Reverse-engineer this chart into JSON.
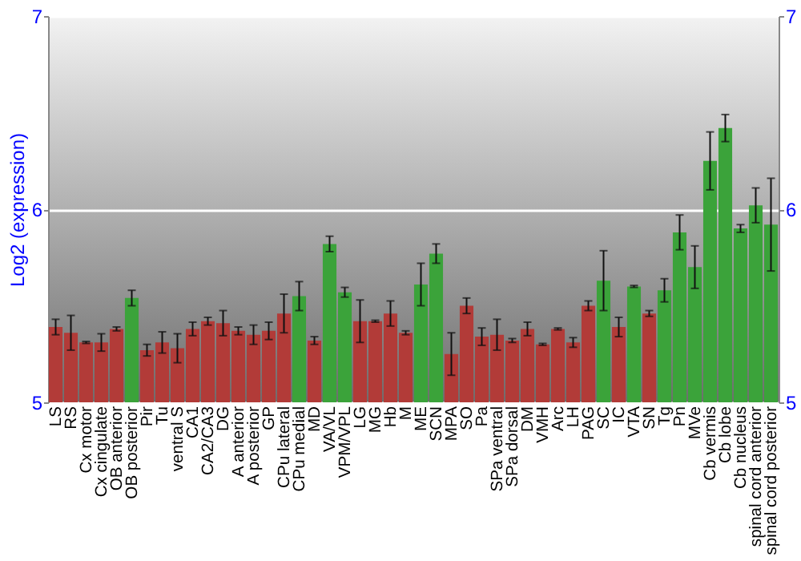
{
  "chart_data": {
    "type": "bar",
    "ylabel": "Log2 (expression)",
    "categories": [
      "LS",
      "RS",
      "Cx motor",
      "Cx cingulate",
      "OB anterior",
      "OB posterior",
      "Pir",
      "Tu",
      "ventral S",
      "CA1",
      "CA2/CA3",
      "DG",
      "A anterior",
      "A posterior",
      "GP",
      "CPu lateral",
      "CPu medial",
      "MD",
      "VA/VL",
      "VPM/VPL",
      "LG",
      "MG",
      "Hb",
      "M",
      "ME",
      "SCN",
      "MPA",
      "SO",
      "Pa",
      "SPa ventral",
      "SPa dorsal",
      "DM",
      "VMH",
      "Arc",
      "LH",
      "PAG",
      "SC",
      "IC",
      "VTA",
      "SN",
      "Tg",
      "Pn",
      "MVe",
      "Cb vermis",
      "Cb lobe",
      "Cb nucleus",
      "spinal cord anterior",
      "spinal cord posterior"
    ],
    "values": [
      5.39,
      5.36,
      5.31,
      5.31,
      5.38,
      5.54,
      5.27,
      5.31,
      5.28,
      5.38,
      5.42,
      5.41,
      5.37,
      5.35,
      5.37,
      5.46,
      5.55,
      5.32,
      5.82,
      5.57,
      5.42,
      5.42,
      5.46,
      5.36,
      5.61,
      5.77,
      5.25,
      5.5,
      5.34,
      5.35,
      5.32,
      5.38,
      5.3,
      5.38,
      5.31,
      5.5,
      5.63,
      5.39,
      5.6,
      5.46,
      5.58,
      5.88,
      5.7,
      6.25,
      6.42,
      5.9,
      6.02,
      5.92
    ],
    "errors": [
      0.04,
      0.09,
      0.005,
      0.045,
      0.01,
      0.04,
      0.03,
      0.055,
      0.075,
      0.035,
      0.02,
      0.065,
      0.02,
      0.05,
      0.045,
      0.1,
      0.075,
      0.02,
      0.04,
      0.025,
      0.11,
      0.005,
      0.065,
      0.01,
      0.11,
      0.05,
      0.11,
      0.04,
      0.045,
      0.08,
      0.01,
      0.035,
      0.005,
      0.005,
      0.025,
      0.025,
      0.155,
      0.05,
      0.005,
      0.015,
      0.06,
      0.09,
      0.11,
      0.15,
      0.07,
      0.02,
      0.09,
      0.24
    ],
    "colors": [
      "#b23b38",
      "#b23b38",
      "#b23b38",
      "#b23b38",
      "#b23b38",
      "#3ba33a",
      "#b23b38",
      "#b23b38",
      "#b23b38",
      "#b23b38",
      "#b23b38",
      "#b23b38",
      "#b23b38",
      "#b23b38",
      "#b23b38",
      "#b23b38",
      "#3ba33a",
      "#b23b38",
      "#3ba33a",
      "#3ba33a",
      "#b23b38",
      "#b23b38",
      "#b23b38",
      "#b23b38",
      "#3ba33a",
      "#3ba33a",
      "#b23b38",
      "#b23b38",
      "#b23b38",
      "#b23b38",
      "#b23b38",
      "#b23b38",
      "#b23b38",
      "#b23b38",
      "#b23b38",
      "#b23b38",
      "#3ba33a",
      "#b23b38",
      "#3ba33a",
      "#b23b38",
      "#3ba33a",
      "#3ba33a",
      "#3ba33a",
      "#3ba33a",
      "#3ba33a",
      "#3ba33a",
      "#3ba33a",
      "#3ba33a"
    ],
    "ylim": [
      5,
      7
    ],
    "yticks": [
      5,
      6,
      7
    ],
    "y2lim": [
      5,
      7
    ],
    "y2ticks": [
      5,
      6,
      7
    ],
    "grid": "y"
  }
}
